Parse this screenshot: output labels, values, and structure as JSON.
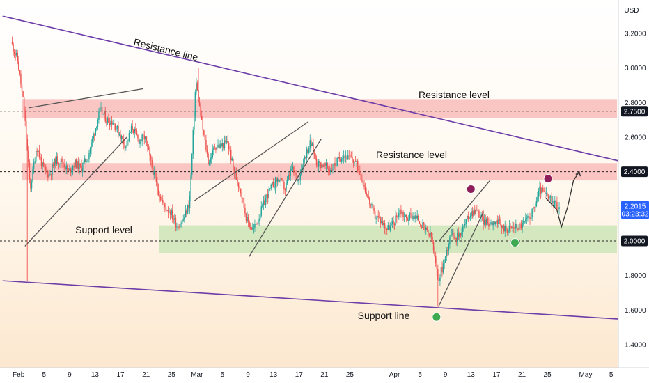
{
  "chart_data": {
    "type": "candlestick",
    "ylabel": "",
    "currency": "USDT",
    "ylim": [
      1.33,
      3.33
    ],
    "y_ticks": [
      "3.2000",
      "3.0000",
      "2.8000",
      "2.6000",
      "2.4000",
      "2.2000",
      "2.0000",
      "1.8000",
      "1.6000",
      "1.4000"
    ],
    "x_ticks": [
      {
        "label": "Feb",
        "day": 1
      },
      {
        "label": "5",
        "day": 5
      },
      {
        "label": "9",
        "day": 9
      },
      {
        "label": "13",
        "day": 13
      },
      {
        "label": "17",
        "day": 17
      },
      {
        "label": "21",
        "day": 21
      },
      {
        "label": "25",
        "day": 25
      },
      {
        "label": "Mar",
        "day": 29
      },
      {
        "label": "5",
        "day": 33
      },
      {
        "label": "9",
        "day": 37
      },
      {
        "label": "13",
        "day": 41
      },
      {
        "label": "17",
        "day": 45
      },
      {
        "label": "21",
        "day": 49
      },
      {
        "label": "25",
        "day": 53
      },
      {
        "label": "Apr",
        "day": 60
      },
      {
        "label": "5",
        "day": 64
      },
      {
        "label": "9",
        "day": 68
      },
      {
        "label": "13",
        "day": 72
      },
      {
        "label": "17",
        "day": 76
      },
      {
        "label": "21",
        "day": 80
      },
      {
        "label": "25",
        "day": 84
      },
      {
        "label": "May",
        "day": 90
      },
      {
        "label": "5",
        "day": 94
      }
    ],
    "price_anchors": [
      [
        0,
        3.15
      ],
      [
        1,
        3.05
      ],
      [
        2,
        2.78
      ],
      [
        3,
        2.3
      ],
      [
        4,
        2.55
      ],
      [
        5,
        2.42
      ],
      [
        6,
        2.38
      ],
      [
        7,
        2.47
      ],
      [
        8,
        2.46
      ],
      [
        9,
        2.4
      ],
      [
        10,
        2.45
      ],
      [
        11,
        2.42
      ],
      [
        12,
        2.48
      ],
      [
        13,
        2.62
      ],
      [
        14,
        2.76
      ],
      [
        15,
        2.7
      ],
      [
        16,
        2.69
      ],
      [
        17,
        2.62
      ],
      [
        18,
        2.55
      ],
      [
        19,
        2.66
      ],
      [
        20,
        2.58
      ],
      [
        21,
        2.6
      ],
      [
        22,
        2.44
      ],
      [
        23,
        2.3
      ],
      [
        24,
        2.2
      ],
      [
        25,
        2.17
      ],
      [
        26,
        2.09
      ],
      [
        27,
        2.12
      ],
      [
        28,
        2.22
      ],
      [
        29,
        2.93
      ],
      [
        30,
        2.66
      ],
      [
        31,
        2.45
      ],
      [
        32,
        2.55
      ],
      [
        33,
        2.55
      ],
      [
        34,
        2.57
      ],
      [
        35,
        2.4
      ],
      [
        36,
        2.3
      ],
      [
        37,
        2.12
      ],
      [
        38,
        2.06
      ],
      [
        39,
        2.15
      ],
      [
        40,
        2.25
      ],
      [
        41,
        2.32
      ],
      [
        42,
        2.36
      ],
      [
        43,
        2.3
      ],
      [
        44,
        2.42
      ],
      [
        45,
        2.35
      ],
      [
        46,
        2.48
      ],
      [
        47,
        2.57
      ],
      [
        48,
        2.45
      ],
      [
        49,
        2.44
      ],
      [
        50,
        2.41
      ],
      [
        51,
        2.45
      ],
      [
        52,
        2.5
      ],
      [
        53,
        2.48
      ],
      [
        54,
        2.46
      ],
      [
        55,
        2.37
      ],
      [
        56,
        2.25
      ],
      [
        57,
        2.15
      ],
      [
        58,
        2.12
      ],
      [
        59,
        2.07
      ],
      [
        60,
        2.1
      ],
      [
        61,
        2.18
      ],
      [
        62,
        2.13
      ],
      [
        63,
        2.15
      ],
      [
        64,
        2.12
      ],
      [
        65,
        2.06
      ],
      [
        66,
        2.02
      ],
      [
        67,
        1.77
      ],
      [
        68,
        1.88
      ],
      [
        69,
        2.05
      ],
      [
        70,
        2.02
      ],
      [
        71,
        2.08
      ],
      [
        72,
        2.16
      ],
      [
        73,
        2.18
      ],
      [
        74,
        2.12
      ],
      [
        75,
        2.1
      ],
      [
        76,
        2.12
      ],
      [
        77,
        2.08
      ],
      [
        78,
        2.07
      ],
      [
        79,
        2.08
      ],
      [
        80,
        2.09
      ],
      [
        81,
        2.12
      ],
      [
        82,
        2.18
      ],
      [
        83,
        2.3
      ],
      [
        84,
        2.26
      ],
      [
        85,
        2.22
      ],
      [
        86,
        2.2
      ]
    ],
    "extremes": [
      {
        "day": 2.3,
        "low": 1.77
      },
      {
        "day": 29.2,
        "high": 3.0
      },
      {
        "day": 66.9,
        "low": 1.62
      },
      {
        "day": 26.0,
        "low": 1.97
      }
    ],
    "current_price": "2.2015",
    "countdown": "03:23:32",
    "levels": [
      {
        "price": "2.7500",
        "band": [
          2.71,
          2.82
        ],
        "label": "Resistance level"
      },
      {
        "price": "2.4000",
        "band": [
          2.35,
          2.45
        ],
        "label": "Resistance level"
      },
      {
        "price": "2.0000",
        "band": [
          1.93,
          2.09
        ],
        "label": "Support level"
      }
    ],
    "trendlines": [
      {
        "label": "Resistance line",
        "from": [
          -1.5,
          3.3
        ],
        "to": [
          99,
          2.43
        ]
      },
      {
        "label": "Support line",
        "from": [
          -1.5,
          1.77
        ],
        "to": [
          99,
          1.54
        ]
      }
    ],
    "channels": [
      [
        [
          2.0,
          1.97
        ],
        [
          18.0,
          2.6
        ]
      ],
      [
        [
          2.6,
          2.77
        ],
        [
          20.5,
          2.88
        ]
      ],
      [
        [
          28.5,
          2.23
        ],
        [
          46.5,
          2.69
        ]
      ],
      [
        [
          37.2,
          1.91
        ],
        [
          48.5,
          2.59
        ]
      ],
      [
        [
          66.9,
          1.62
        ],
        [
          74.0,
          2.17
        ]
      ],
      [
        [
          67.0,
          2.0
        ],
        [
          75.0,
          2.35
        ]
      ]
    ],
    "projection": [
      [
        83.7,
        2.25
      ],
      [
        85.5,
        2.18
      ],
      [
        86.2,
        2.08
      ],
      [
        87.2,
        2.2
      ],
      [
        88.1,
        2.35
      ],
      [
        89.0,
        2.4
      ]
    ],
    "markers": [
      {
        "day": 72.0,
        "price": 2.3,
        "color": "#8e1d5b"
      },
      {
        "day": 84.1,
        "price": 2.36,
        "color": "#8e1d5b"
      },
      {
        "day": 78.9,
        "price": 1.99,
        "color": "#3daa52"
      },
      {
        "day": 66.6,
        "price": 1.56,
        "color": "#3daa52"
      }
    ],
    "colors": {
      "up": "#26a69a",
      "down": "#ef5350",
      "trendline": "#6d3ca8",
      "resistance_band": "#f6a3a3",
      "support_band": "#c6e3b2",
      "price_tag": "#2962ff",
      "level_tag": "#131722"
    }
  }
}
